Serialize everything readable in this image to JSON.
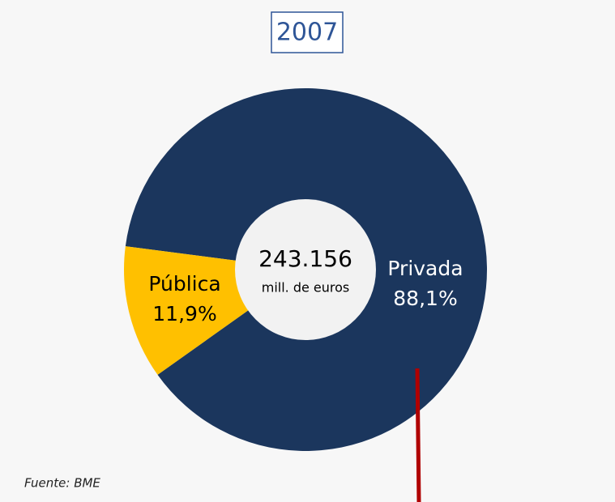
{
  "chart_data": {
    "type": "donut",
    "title": "2007",
    "categories": [
      "Privada",
      "Pública"
    ],
    "values": [
      88.1,
      11.9
    ],
    "value_labels": [
      "88,1%",
      "11,9%"
    ],
    "colors": [
      "#1b365d",
      "#ffc000"
    ],
    "center_value": "243.156",
    "center_unit": "mill. de euros",
    "source": "Fuente: BME"
  }
}
